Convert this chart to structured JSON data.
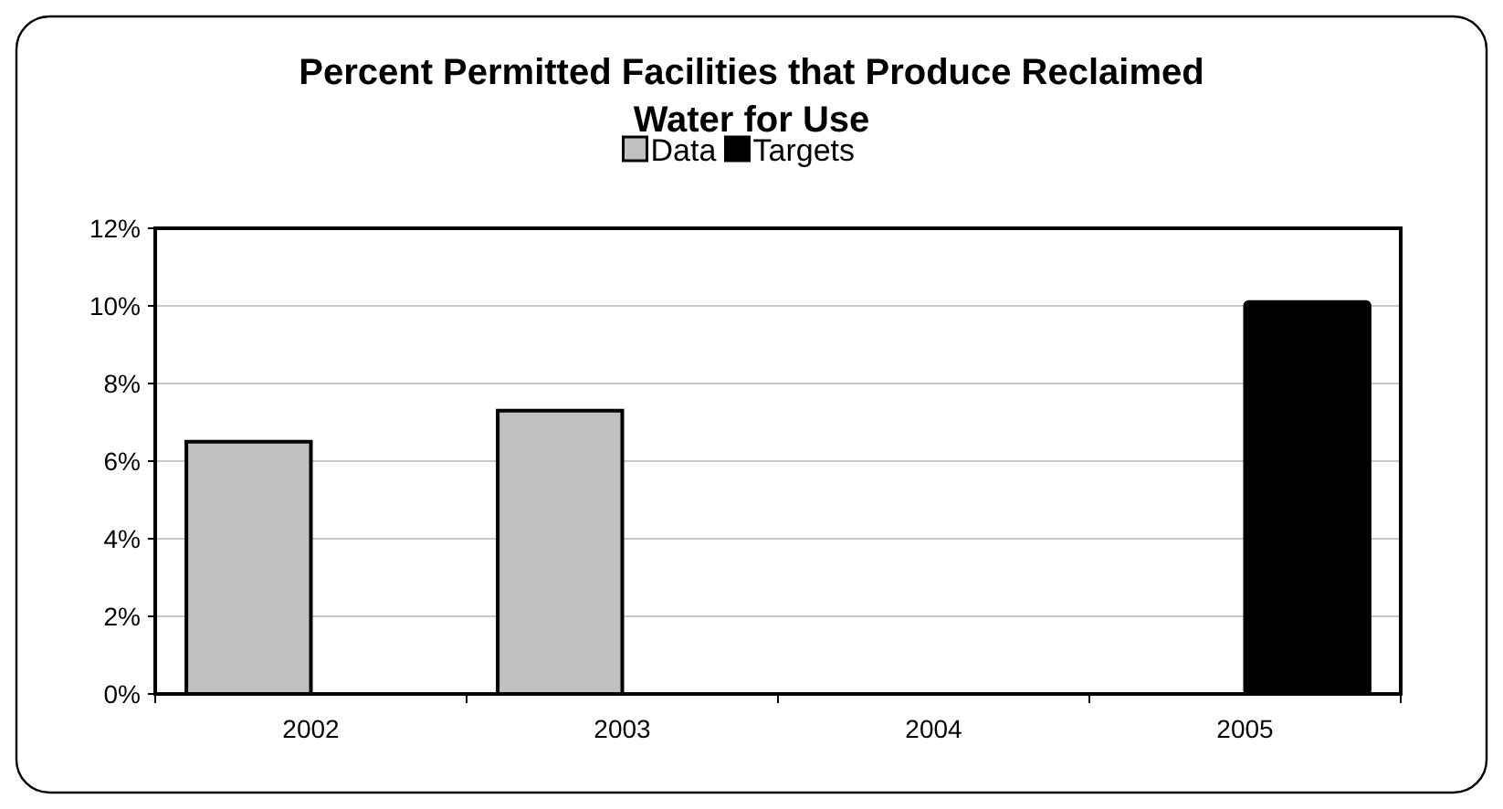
{
  "chart_data": {
    "type": "bar",
    "title": "Percent Permitted Facilities that Produce Reclaimed Water for Use",
    "categories": [
      "2002",
      "2003",
      "2004",
      "2005"
    ],
    "series": [
      {
        "name": "Data",
        "color": "#c0c0c0",
        "values": [
          6.5,
          7.3,
          null,
          null
        ]
      },
      {
        "name": "Targets",
        "color": "#000000",
        "values": [
          null,
          null,
          null,
          10.1
        ]
      }
    ],
    "ylim": [
      0,
      12
    ],
    "yticks": [
      {
        "value": 0,
        "label": "0%"
      },
      {
        "value": 2,
        "label": "2%"
      },
      {
        "value": 4,
        "label": "4%"
      },
      {
        "value": 6,
        "label": "6%"
      },
      {
        "value": 8,
        "label": "8%"
      },
      {
        "value": 10,
        "label": "10%"
      },
      {
        "value": 12,
        "label": "12%"
      }
    ],
    "grid": "y",
    "legend": "top"
  }
}
